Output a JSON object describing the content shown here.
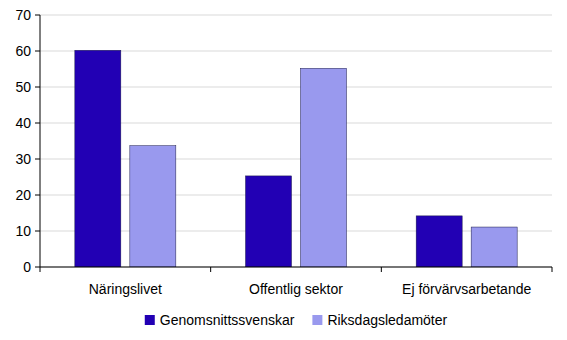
{
  "chart_data": {
    "type": "bar",
    "categories": [
      "Näringslivet",
      "Offentlig sektor",
      "Ej förvärvsarbetande"
    ],
    "series": [
      {
        "name": "Genomsnittssvenskar",
        "color": "#2200b4",
        "values": [
          60.2,
          25.3,
          14.2
        ]
      },
      {
        "name": "Riksdagsledamöter",
        "color": "#9999ee",
        "values": [
          33.7,
          55.2,
          11.1
        ]
      }
    ],
    "ylim": [
      0,
      70
    ],
    "yticks": [
      0,
      10,
      20,
      30,
      40,
      50,
      60,
      70
    ],
    "grid": true,
    "legend": "bottom"
  }
}
